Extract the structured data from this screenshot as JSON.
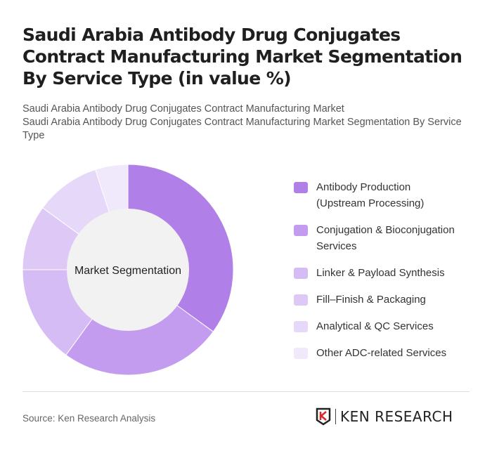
{
  "title": "Saudi Arabia Antibody Drug Conjugates Contract Manufacturing Market Segmentation By Service Type (in value %)",
  "subtitle_lines": [
    "Saudi Arabia Antibody Drug Conjugates Contract Manufacturing Market",
    "Saudi Arabia Antibody Drug Conjugates Contract Manufacturing Market Segmentation By Service Type"
  ],
  "chart_data": {
    "type": "pie",
    "donut": true,
    "center_label": "Market Segmentation",
    "legend_position": "right",
    "categories": [
      "Antibody Production (Upstream Processing)",
      "Conjugation & Bioconjugation Services",
      "Linker & Payload Synthesis",
      "Fill–Finish & Packaging",
      "Analytical & QC Services",
      "Other ADC-related Services"
    ],
    "values": [
      35,
      25,
      15,
      10,
      10,
      5
    ],
    "colors": [
      "#b07fe8",
      "#c39cf0",
      "#d5bcf5",
      "#ddc8f6",
      "#e6d8f8",
      "#f0e8fb"
    ]
  },
  "footer": {
    "source": "Source: Ken Research Analysis",
    "logo_text": "KEN RESEARCH"
  }
}
